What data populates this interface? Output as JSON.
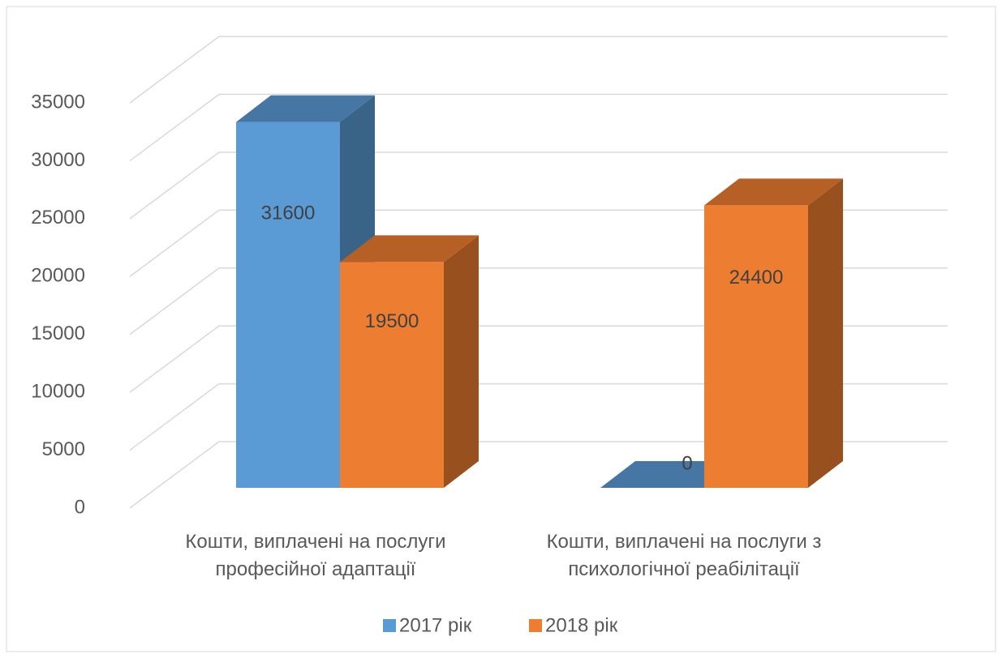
{
  "chart_data": {
    "type": "bar3d",
    "categories": [
      "Кошти, виплачені на послуги професійної адаптації",
      "Кошти, виплачені на послуги з психологічної реабілітації"
    ],
    "series": [
      {
        "name": "2017 рік",
        "color": "#5b9bd5",
        "values": [
          31600,
          0
        ]
      },
      {
        "name": "2018 рік",
        "color": "#ed7d31",
        "values": [
          19500,
          24400
        ]
      }
    ],
    "ylim": [
      0,
      35000
    ],
    "yticks": [
      0,
      5000,
      10000,
      15000,
      20000,
      25000,
      30000,
      35000
    ],
    "grid": true,
    "legend": "bottom",
    "data_labels": true
  }
}
